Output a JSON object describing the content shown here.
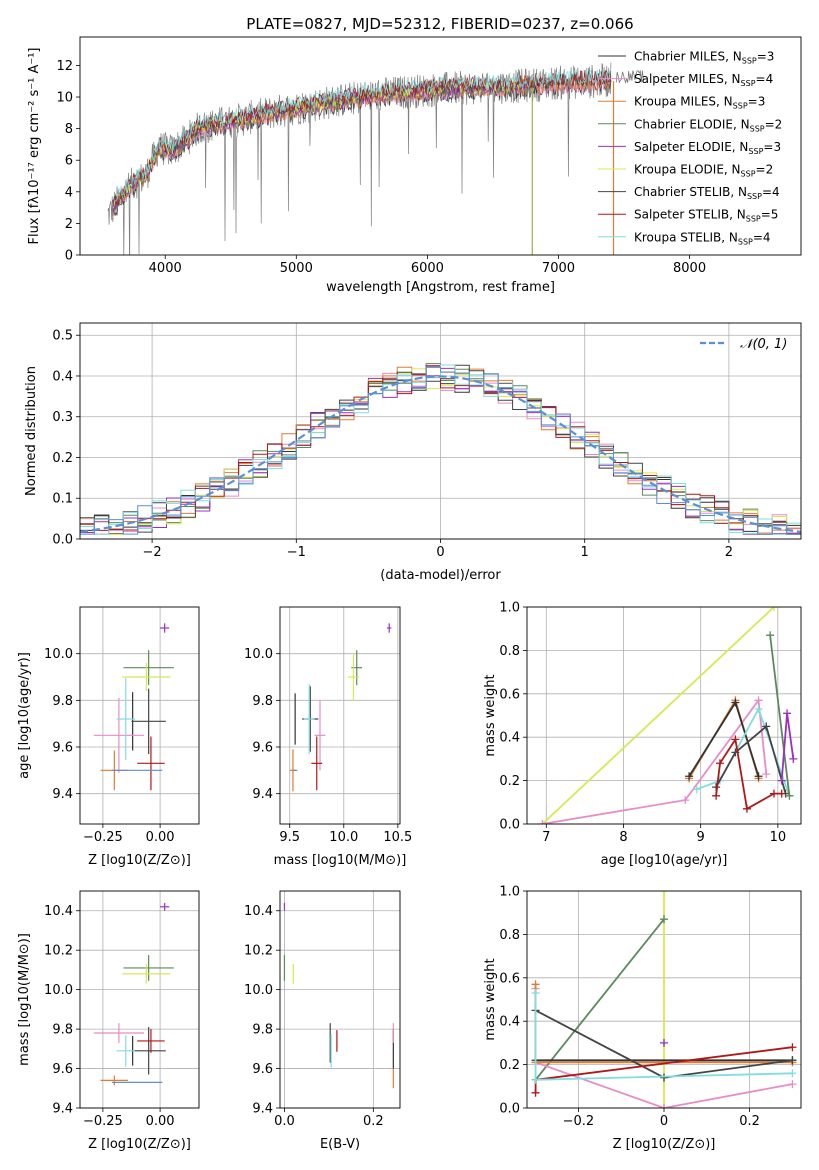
{
  "figure": {
    "title": "PLATE=0827, MJD=52312, FIBERID=0237, z=0.066"
  },
  "colors": {
    "Chabrier MILES": "#333333",
    "Salpeter MILES": "#e88cc8",
    "Kroupa MILES": "#e07c30",
    "Chabrier ELODIE": "#5a8a5a",
    "Salpeter ELODIE": "#9b30c0",
    "Kroupa ELODIE": "#d8e850",
    "Chabrier STELIB": "#444444",
    "Salpeter STELIB": "#b01818",
    "Kroupa STELIB": "#80dde0",
    "data": "#7f7f7f",
    "gaussian": "#5b8fd6",
    "blue_extra": "#5b8fd6"
  },
  "chart_data": [
    {
      "id": "spectrum",
      "type": "line",
      "xlabel": "wavelength [Angstrom, rest frame]",
      "ylabel": "Flux [fλ10⁻¹⁷ erg cm⁻² s⁻¹ A⁻¹]",
      "xlim": [
        3350,
        8850
      ],
      "ylim": [
        0,
        13.8
      ],
      "xticks": [
        4000,
        5000,
        6000,
        7000,
        8000
      ],
      "yticks": [
        0,
        2,
        4,
        6,
        8,
        10,
        12
      ],
      "legend_position": "top-right",
      "legend": [
        {
          "label": "Chabrier MILES",
          "n": "3"
        },
        {
          "label": "Salpeter MILES",
          "n": "4"
        },
        {
          "label": "Kroupa MILES",
          "n": "3"
        },
        {
          "label": "Chabrier ELODIE",
          "n": "2"
        },
        {
          "label": "Salpeter ELODIE",
          "n": "3"
        },
        {
          "label": "Kroupa ELODIE",
          "n": "2"
        },
        {
          "label": "Chabrier STELIB",
          "n": "4"
        },
        {
          "label": "Salpeter STELIB",
          "n": "5"
        },
        {
          "label": "Kroupa STELIB",
          "n": "4"
        }
      ],
      "continuum": {
        "x": [
          3560,
          3650,
          3750,
          3850,
          3950,
          4050,
          4150,
          4250,
          4400,
          4600,
          4800,
          5000,
          5200,
          5500,
          5800,
          6100,
          6400,
          6700,
          7000,
          7300,
          7500
        ],
        "y": [
          2.5,
          3.5,
          4.5,
          5.0,
          6.8,
          6.6,
          7.2,
          8.0,
          8.3,
          8.6,
          9.0,
          9.3,
          9.6,
          10.0,
          10.3,
          10.5,
          10.6,
          10.7,
          10.9,
          11.0,
          11.2
        ]
      }
    },
    {
      "id": "residuals",
      "type": "bar",
      "xlabel": "(data-model)/error",
      "ylabel": "Normed distribution",
      "xlim": [
        -2.5,
        2.5
      ],
      "ylim": [
        0,
        0.53
      ],
      "xticks": [
        -2,
        -1,
        0,
        1,
        2
      ],
      "yticks": [
        0.0,
        0.1,
        0.2,
        0.3,
        0.4,
        0.5
      ],
      "legend": [
        "𝒩(0, 1)"
      ],
      "legend_position": "top-right",
      "bin_width": 0.1
    },
    {
      "id": "age_vs_Z",
      "type": "scatter",
      "xlabel": "Z [log10(Z/Z⊙)]",
      "ylabel": "age  [log10(age/yr)]",
      "xlim": [
        -0.35,
        0.17
      ],
      "ylim": [
        9.27,
        10.2
      ],
      "xticks": [
        -0.25,
        0.0
      ],
      "yticks": [
        9.4,
        9.6,
        9.8,
        10.0
      ],
      "points": [
        {
          "model": "Chabrier MILES",
          "x": -0.12,
          "y": 9.71,
          "xerr": 0.0,
          "yerr": 0.25
        },
        {
          "model": "Salpeter MILES",
          "x": -0.18,
          "y": 9.65,
          "xerr": 0.22,
          "yerr": 0.32
        },
        {
          "model": "Kroupa MILES",
          "x": -0.2,
          "y": 9.5,
          "xerr": 0.12,
          "yerr": 0.17
        },
        {
          "model": "Chabrier ELODIE",
          "x": -0.05,
          "y": 9.94,
          "xerr": 0.22,
          "yerr": 0.15
        },
        {
          "model": "Salpeter ELODIE",
          "x": 0.02,
          "y": 10.11,
          "xerr": 0.04,
          "yerr": 0.04
        },
        {
          "model": "Kroupa ELODIE",
          "x": -0.06,
          "y": 9.9,
          "xerr": 0.21,
          "yerr": 0.12
        },
        {
          "model": "Chabrier STELIB",
          "x": -0.05,
          "y": 9.71,
          "xerr": 0.15,
          "yerr": 0.28
        },
        {
          "model": "Salpeter STELIB",
          "x": -0.04,
          "y": 9.53,
          "xerr": 0.12,
          "yerr": 0.23
        },
        {
          "model": "Kroupa STELIB",
          "x": -0.15,
          "y": 9.72,
          "xerr": 0.08,
          "yerr": 0.35
        },
        {
          "model": "blue_extra",
          "x": -0.1,
          "y": 9.5,
          "xerr": 0.22,
          "yerr": 0.0
        }
      ]
    },
    {
      "id": "age_vs_mass",
      "type": "scatter",
      "xlabel": "mass [log10(M/M⊙)]",
      "ylabel": "",
      "xlim": [
        9.41,
        10.52
      ],
      "ylim": [
        9.27,
        10.2
      ],
      "xticks": [
        9.5,
        10.0,
        10.5
      ],
      "yticks": [
        9.4,
        9.6,
        9.8,
        10.0
      ],
      "points": [
        {
          "model": "Chabrier MILES",
          "x": 9.55,
          "y": 9.72,
          "xerr": 0.0,
          "yerr": 0.22
        },
        {
          "model": "Salpeter MILES",
          "x": 9.78,
          "y": 9.65,
          "xerr": 0.1,
          "yerr": 0.3
        },
        {
          "model": "Kroupa MILES",
          "x": 9.53,
          "y": 9.5,
          "xerr": 0.06,
          "yerr": 0.18
        },
        {
          "model": "Chabrier ELODIE",
          "x": 10.12,
          "y": 9.94,
          "xerr": 0.1,
          "yerr": 0.15
        },
        {
          "model": "Salpeter ELODIE",
          "x": 10.42,
          "y": 10.11,
          "xerr": 0.04,
          "yerr": 0.04
        },
        {
          "model": "Kroupa ELODIE",
          "x": 10.09,
          "y": 9.9,
          "xerr": 0.1,
          "yerr": 0.2
        },
        {
          "model": "Chabrier STELIB",
          "x": 9.69,
          "y": 9.72,
          "xerr": 0.15,
          "yerr": 0.28
        },
        {
          "model": "Salpeter STELIB",
          "x": 9.75,
          "y": 9.53,
          "xerr": 0.1,
          "yerr": 0.23
        },
        {
          "model": "Kroupa STELIB",
          "x": 9.68,
          "y": 9.72,
          "xerr": 0.1,
          "yerr": 0.3
        },
        {
          "model": "blue_extra",
          "x": 9.55,
          "y": 9.5,
          "xerr": 0.04,
          "yerr": 0.0
        }
      ]
    },
    {
      "id": "weight_vs_age",
      "type": "line",
      "xlabel": "age  [log10(age/yr)]",
      "ylabel": "mass weight",
      "xlim": [
        6.75,
        10.3
      ],
      "ylim": [
        0,
        1.0
      ],
      "xticks": [
        7,
        8,
        9,
        10
      ],
      "yticks": [
        0.0,
        0.2,
        0.4,
        0.6,
        0.8,
        1.0
      ],
      "series": [
        {
          "model": "Kroupa ELODIE",
          "x": [
            6.95,
            9.95
          ],
          "y": [
            0.0,
            1.0
          ]
        },
        {
          "model": "Salpeter MILES",
          "x": [
            6.95,
            8.8,
            9.75,
            9.85
          ],
          "y": [
            0.0,
            0.11,
            0.57,
            0.23
          ]
        },
        {
          "model": "Kroupa MILES",
          "x": [
            8.85,
            9.45,
            9.75
          ],
          "y": [
            0.21,
            0.57,
            0.21
          ]
        },
        {
          "model": "Chabrier MILES",
          "x": [
            8.85,
            9.45,
            9.75
          ],
          "y": [
            0.22,
            0.56,
            0.22
          ]
        },
        {
          "model": "Kroupa STELIB",
          "x": [
            8.95,
            9.25,
            9.75,
            10.15
          ],
          "y": [
            0.16,
            0.2,
            0.53,
            0.13
          ]
        },
        {
          "model": "Chabrier STELIB",
          "x": [
            9.2,
            9.45,
            9.85,
            10.1
          ],
          "y": [
            0.17,
            0.33,
            0.45,
            0.14
          ]
        },
        {
          "model": "Salpeter STELIB",
          "x": [
            9.2,
            9.25,
            9.45,
            9.6,
            9.95,
            10.05
          ],
          "y": [
            0.13,
            0.28,
            0.39,
            0.07,
            0.14,
            0.14
          ]
        },
        {
          "model": "Chabrier ELODIE",
          "x": [
            9.9,
            10.15
          ],
          "y": [
            0.87,
            0.13
          ]
        },
        {
          "model": "Salpeter ELODIE",
          "x": [
            10.05,
            10.12,
            10.2
          ],
          "y": [
            0.2,
            0.51,
            0.3
          ]
        }
      ]
    },
    {
      "id": "mass_vs_Z",
      "type": "scatter",
      "xlabel": "Z [log10(Z/Z⊙)]",
      "ylabel": "mass [log10(M/M⊙)]",
      "xlim": [
        -0.35,
        0.17
      ],
      "ylim": [
        9.4,
        10.5
      ],
      "xticks": [
        -0.25,
        0.0
      ],
      "yticks": [
        9.4,
        9.6,
        9.8,
        10.0,
        10.2,
        10.4
      ],
      "points": [
        {
          "model": "Chabrier MILES",
          "x": -0.12,
          "y": 9.69,
          "xerr": 0.0,
          "yerr": 0.15
        },
        {
          "model": "Salpeter MILES",
          "x": -0.18,
          "y": 9.78,
          "xerr": 0.22,
          "yerr": 0.1
        },
        {
          "model": "Kroupa MILES",
          "x": -0.2,
          "y": 9.54,
          "xerr": 0.12,
          "yerr": 0.05
        },
        {
          "model": "Chabrier ELODIE",
          "x": -0.05,
          "y": 10.11,
          "xerr": 0.22,
          "yerr": 0.13
        },
        {
          "model": "Salpeter ELODIE",
          "x": 0.02,
          "y": 10.42,
          "xerr": 0.04,
          "yerr": 0.04
        },
        {
          "model": "Kroupa ELODIE",
          "x": -0.06,
          "y": 10.08,
          "xerr": 0.21,
          "yerr": 0.1
        },
        {
          "model": "Chabrier STELIB",
          "x": -0.05,
          "y": 9.69,
          "xerr": 0.15,
          "yerr": 0.24
        },
        {
          "model": "Salpeter STELIB",
          "x": -0.04,
          "y": 9.74,
          "xerr": 0.12,
          "yerr": 0.12
        },
        {
          "model": "Kroupa STELIB",
          "x": -0.15,
          "y": 9.69,
          "xerr": 0.08,
          "yerr": 0.16
        },
        {
          "model": "blue_extra",
          "x": -0.1,
          "y": 9.53,
          "xerr": 0.22,
          "yerr": 0.0
        }
      ]
    },
    {
      "id": "mass_vs_ebv",
      "type": "scatter",
      "xlabel": "E(B-V)",
      "ylabel": "",
      "xlim": [
        -0.01,
        0.26
      ],
      "ylim": [
        9.4,
        10.5
      ],
      "xticks": [
        0.0,
        0.2
      ],
      "yticks": [
        9.4,
        9.6,
        9.8,
        10.0,
        10.2,
        10.4
      ],
      "points": [
        {
          "model": "Chabrier MILES",
          "x": 0.245,
          "y": 9.7,
          "xerr": 0.0,
          "yerr": 0.2
        },
        {
          "model": "Salpeter MILES",
          "x": 0.245,
          "y": 9.78,
          "xerr": 0.0,
          "yerr": 0.1
        },
        {
          "model": "Kroupa MILES",
          "x": 0.245,
          "y": 9.55,
          "xerr": 0.0,
          "yerr": 0.1
        },
        {
          "model": "Chabrier ELODIE",
          "x": 0.0,
          "y": 10.11,
          "xerr": 0.0,
          "yerr": 0.13
        },
        {
          "model": "Salpeter ELODIE",
          "x": 0.0,
          "y": 10.42,
          "xerr": 0.0,
          "yerr": 0.04
        },
        {
          "model": "Kroupa ELODIE",
          "x": 0.02,
          "y": 10.08,
          "xerr": 0.0,
          "yerr": 0.1
        },
        {
          "model": "Chabrier STELIB",
          "x": 0.103,
          "y": 9.73,
          "xerr": 0.0,
          "yerr": 0.2
        },
        {
          "model": "Salpeter STELIB",
          "x": 0.118,
          "y": 9.74,
          "xerr": 0.0,
          "yerr": 0.11
        },
        {
          "model": "Kroupa STELIB",
          "x": 0.105,
          "y": 9.69,
          "xerr": 0.0,
          "yerr": 0.17
        }
      ]
    },
    {
      "id": "weight_vs_Z",
      "type": "line",
      "xlabel": "Z [log10(Z/Z⊙)]",
      "ylabel": "mass weight",
      "xlim": [
        -0.32,
        0.32
      ],
      "ylim": [
        0,
        1.0
      ],
      "xticks": [
        -0.2,
        0.0,
        0.2
      ],
      "yticks": [
        0.0,
        0.2,
        0.4,
        0.6,
        0.8,
        1.0
      ],
      "series": [
        {
          "model": "Kroupa ELODIE",
          "x": [
            -0.0,
            -0.0
          ],
          "y": [
            0.0,
            1.0
          ]
        },
        {
          "model": "Chabrier ELODIE",
          "x": [
            -0.3,
            0.0
          ],
          "y": [
            0.13,
            0.87
          ]
        },
        {
          "model": "Salpeter MILES",
          "x": [
            -0.3,
            -0.3,
            0.0,
            0.3
          ],
          "y": [
            0.55,
            0.21,
            0.0,
            0.11
          ]
        },
        {
          "model": "Kroupa MILES",
          "x": [
            -0.3,
            -0.3,
            0.3
          ],
          "y": [
            0.57,
            0.21,
            0.21
          ]
        },
        {
          "model": "Chabrier MILES",
          "x": [
            -0.3,
            0.3
          ],
          "y": [
            0.22,
            0.22
          ]
        },
        {
          "model": "Chabrier STELIB",
          "x": [
            -0.3,
            0.0,
            0.3
          ],
          "y": [
            0.45,
            0.14,
            0.22
          ]
        },
        {
          "model": "Salpeter STELIB",
          "x": [
            -0.3,
            -0.3,
            0.3
          ],
          "y": [
            0.07,
            0.13,
            0.28
          ]
        },
        {
          "model": "Kroupa STELIB",
          "x": [
            -0.3,
            -0.3,
            0.3
          ],
          "y": [
            0.53,
            0.13,
            0.16
          ]
        },
        {
          "model": "Salpeter ELODIE",
          "x": [
            0.0
          ],
          "y": [
            0.3
          ]
        }
      ]
    }
  ]
}
